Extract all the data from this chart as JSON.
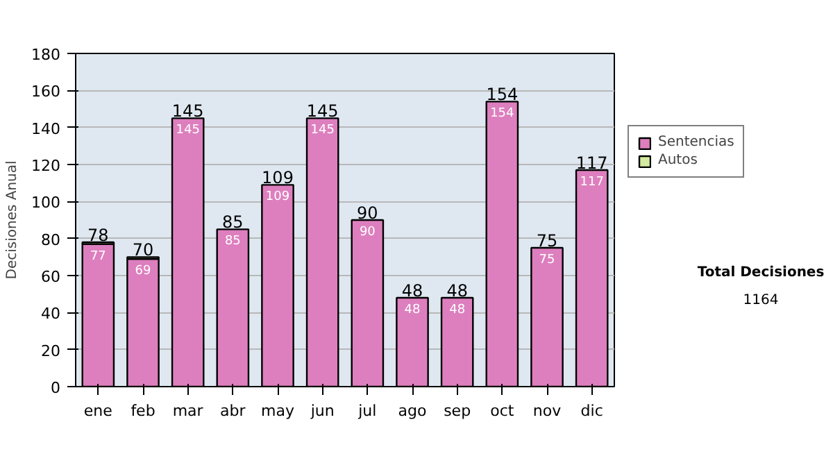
{
  "chart_data": {
    "type": "bar",
    "stacked": true,
    "ylabel": "Decisiones Anual",
    "categories": [
      "ene",
      "feb",
      "mar",
      "abr",
      "may",
      "jun",
      "jul",
      "ago",
      "sep",
      "oct",
      "nov",
      "dic"
    ],
    "series": [
      {
        "name": "Sentencias",
        "color": "#dd7fbe",
        "values": [
          77,
          69,
          145,
          85,
          109,
          145,
          90,
          48,
          48,
          154,
          75,
          117
        ],
        "value_labels": [
          "77",
          "69",
          "145",
          "85",
          "109",
          "145",
          "90",
          "48",
          "48",
          "154",
          "75",
          "117"
        ]
      },
      {
        "name": "Autos",
        "color": "#d4eaa0",
        "values": [
          1,
          1,
          0,
          0,
          0,
          0,
          0,
          0,
          0,
          0,
          0,
          0
        ]
      }
    ],
    "totals": [
      "78",
      "70",
      "145",
      "85",
      "109",
      "145",
      "90",
      "48",
      "48",
      "154",
      "75",
      "117"
    ],
    "ylim": [
      0,
      180
    ],
    "yticks": [
      0,
      20,
      40,
      60,
      80,
      100,
      120,
      140,
      160,
      180
    ],
    "grid": "y",
    "legend": "right",
    "annotations": [
      "Total Decisiones",
      "1164"
    ]
  }
}
